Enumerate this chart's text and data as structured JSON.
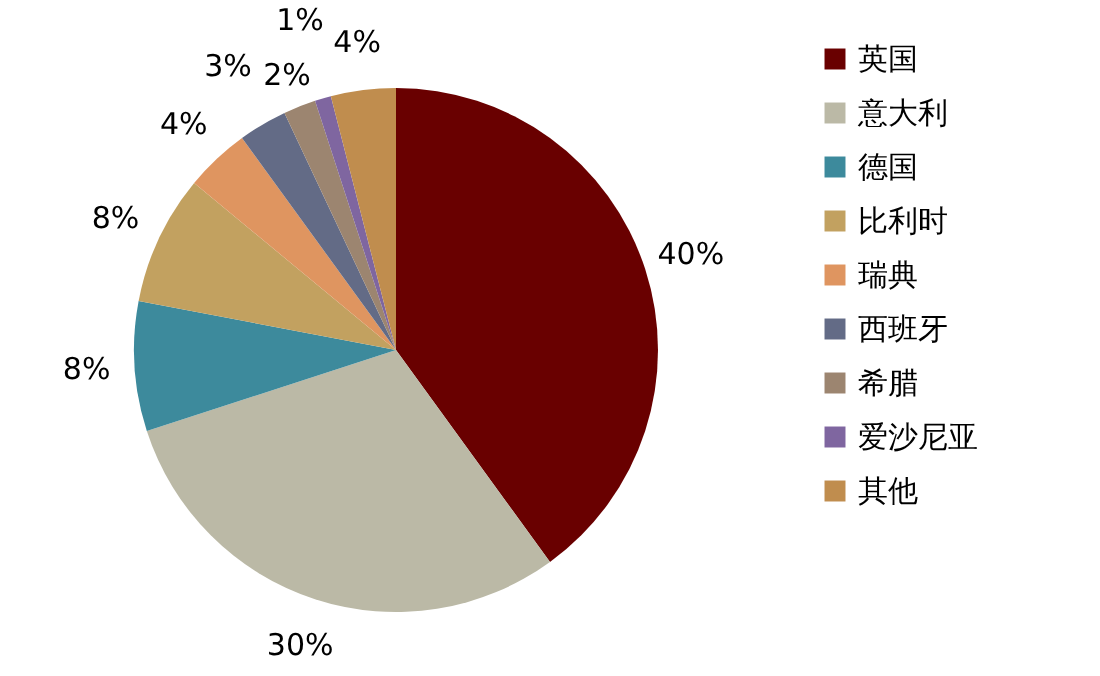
{
  "chart_data": {
    "type": "pie",
    "categories": [
      "英国",
      "意大利",
      "德国",
      "比利时",
      "瑞典",
      "西班牙",
      "希腊",
      "爱沙尼亚",
      "其他"
    ],
    "values": [
      40,
      30,
      8,
      8,
      4,
      3,
      2,
      1,
      4
    ],
    "value_labels": [
      "40%",
      "30%",
      "8%",
      "8%",
      "4%",
      "3%",
      "2%",
      "1%",
      "4%"
    ],
    "colors": [
      "#690000",
      "#bbb9a6",
      "#3d8a9c",
      "#c2a160",
      "#df9560",
      "#636b86",
      "#9c8570",
      "#7f66a0",
      "#c08d4e"
    ],
    "legend": "right"
  }
}
